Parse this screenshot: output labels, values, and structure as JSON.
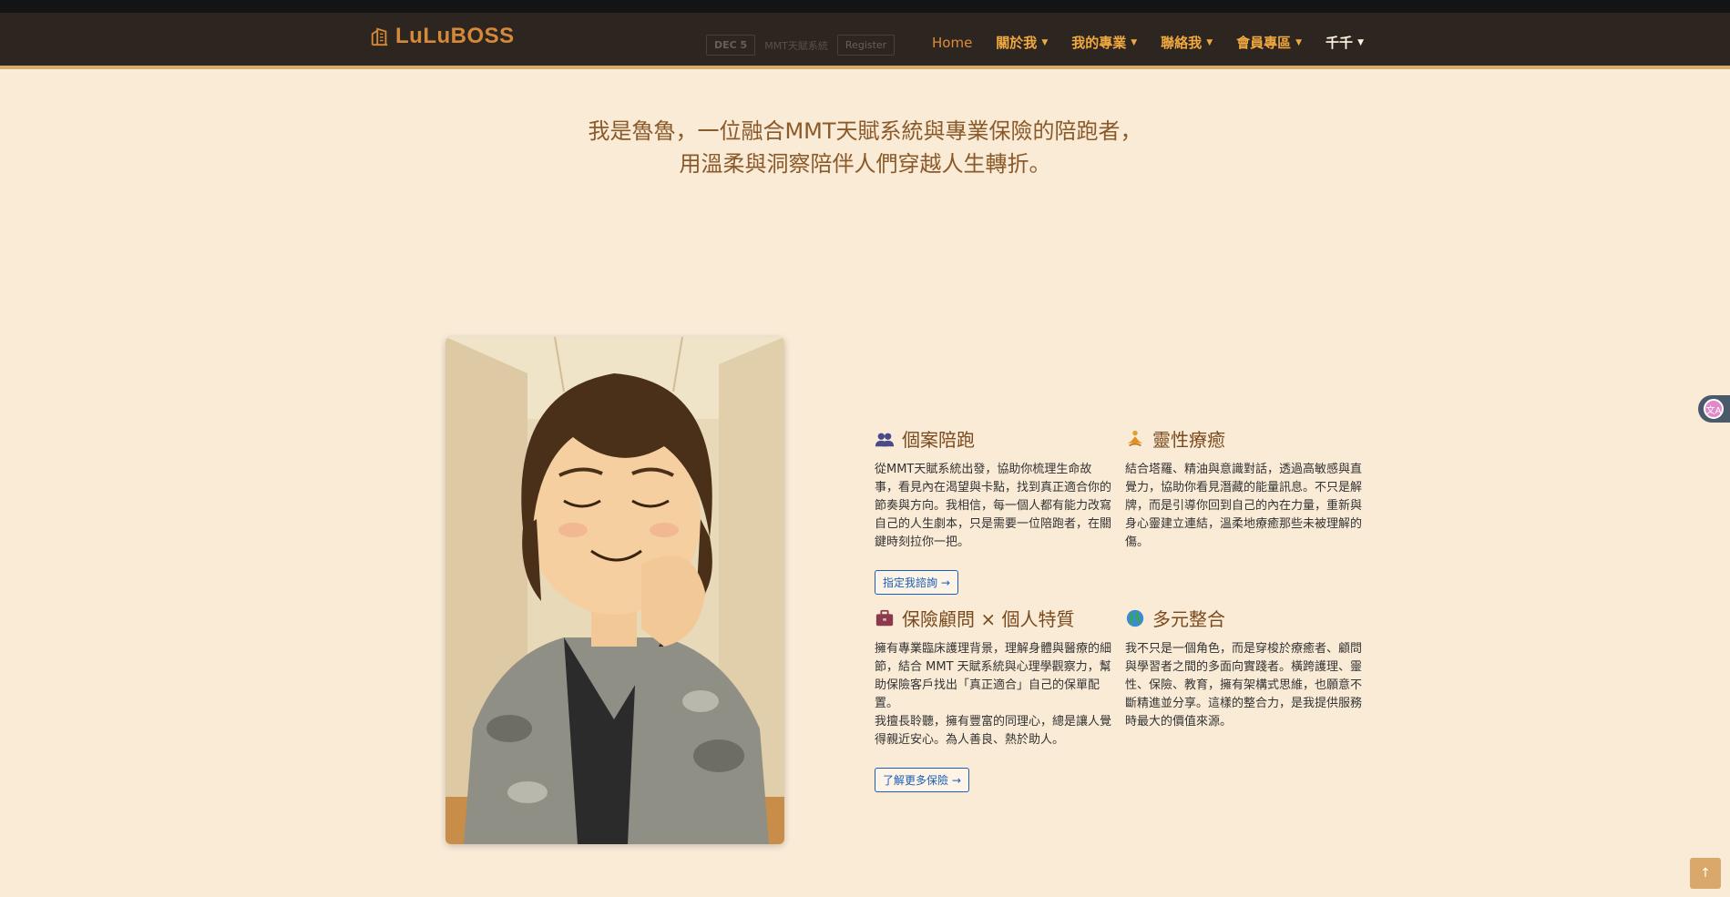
{
  "navbar": {
    "brand": "LuLuBOSS",
    "items": [
      {
        "label": "Home",
        "dropdown": false
      },
      {
        "label": "關於我",
        "dropdown": true
      },
      {
        "label": "我的專業",
        "dropdown": true
      },
      {
        "label": "聯絡我",
        "dropdown": true
      },
      {
        "label": "會員專區",
        "dropdown": true
      },
      {
        "label": "千千",
        "dropdown": true
      }
    ],
    "ghost_events": [
      {
        "date": "DEC 5",
        "title": "MMT天賦系統",
        "action": "Register"
      }
    ]
  },
  "intro": {
    "line1": "我是魯魯，一位融合MMT天賦系統與專業保險的陪跑者，",
    "line2": "用溫柔與洞察陪伴人們穿越人生轉折。"
  },
  "cards": [
    {
      "icon": "people-icon",
      "title": "個案陪跑",
      "body": "從MMT天賦系統出發，協助你梳理生命故事，看見內在渴望與卡點，找到真正適合你的節奏與方向。我相信，每一個人都有能力改寫自己的人生劇本，只是需要一位陪跑者，在關鍵時刻拉你一把。",
      "button": "指定我諮詢 →"
    },
    {
      "icon": "meditation-icon",
      "title": "靈性療癒",
      "body": "結合塔羅、精油與意識對話，透過高敏感與直覺力，協助你看見潛藏的能量訊息。不只是解牌，而是引導你回到自己的內在力量，重新與身心靈建立連結，溫柔地療癒那些未被理解的傷。",
      "button": ""
    },
    {
      "icon": "briefcase-icon",
      "title": "保險顧問 × 個人特質",
      "body": "擁有專業臨床護理背景，理解身體與醫療的細節，結合 MMT 天賦系統與心理學觀察力，幫助保險客戶找出「真正適合」自己的保單配置。\n我擅長聆聽，擁有豐富的同理心，總是讓人覺得親近安心。為人善良、熱於助人。",
      "button": "了解更多保險 →"
    },
    {
      "icon": "globe-icon",
      "title": "多元整合",
      "body": "我不只是一個角色，而是穿梭於療癒者、顧問與學習者之間的多面向實踐者。橫跨護理、靈性、保險、教育，擁有架構式思維，也願意不斷精進並分享。這樣的整合力，是我提供服務時最大的價值來源。",
      "button": ""
    }
  ],
  "colors": {
    "background": "#faebd7",
    "navbar": "#2d2620",
    "accent": "#d9a86a",
    "brand": "#d7893a",
    "link_button": "#1a5fb4"
  }
}
